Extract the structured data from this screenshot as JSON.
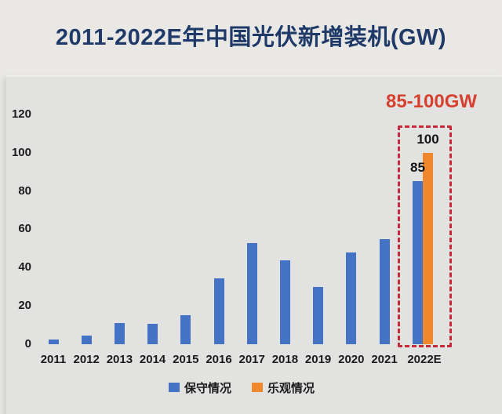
{
  "page_title": "2011-2022E年中国光伏新增装机(GW)",
  "annotation": {
    "range_label": "85-100GW",
    "bar_labels": {
      "conservative": "85",
      "optimistic": "100"
    }
  },
  "chart_data": {
    "type": "bar",
    "title": "2011-2022E年中国光伏新增装机(GW)",
    "categories": [
      "2011",
      "2012",
      "2013",
      "2014",
      "2015",
      "2016",
      "2017",
      "2018",
      "2019",
      "2020",
      "2021",
      "2022E"
    ],
    "series": [
      {
        "key": "conservative",
        "name": "保守情况",
        "color": "#4472c4",
        "values": [
          2.5,
          4.5,
          11,
          10.6,
          15.1,
          34.5,
          53,
          44,
          30,
          48,
          55,
          85
        ]
      },
      {
        "key": "optimistic",
        "name": "乐观情况",
        "color": "#ef872d",
        "values": [
          null,
          null,
          null,
          null,
          null,
          null,
          null,
          null,
          null,
          null,
          null,
          100
        ]
      }
    ],
    "xlabel": "",
    "ylabel": "",
    "ylim": [
      0,
      120
    ],
    "yticks": [
      0,
      20,
      40,
      60,
      80,
      100,
      120
    ],
    "grid": false,
    "legend_position": "bottom",
    "highlight": {
      "category": "2022E",
      "label": "85-100GW",
      "box_color": "#c5293a"
    }
  },
  "colors": {
    "page_bg": "#e9e8e4",
    "panel_bg": "#e2e3e0",
    "title": "#1f3a68",
    "annotation_red": "#d7402f",
    "highlight_border": "#c5293a",
    "conservative_blue": "#4472c4",
    "optimistic_orange": "#ef872d",
    "axis_text": "#1b1b1d"
  }
}
